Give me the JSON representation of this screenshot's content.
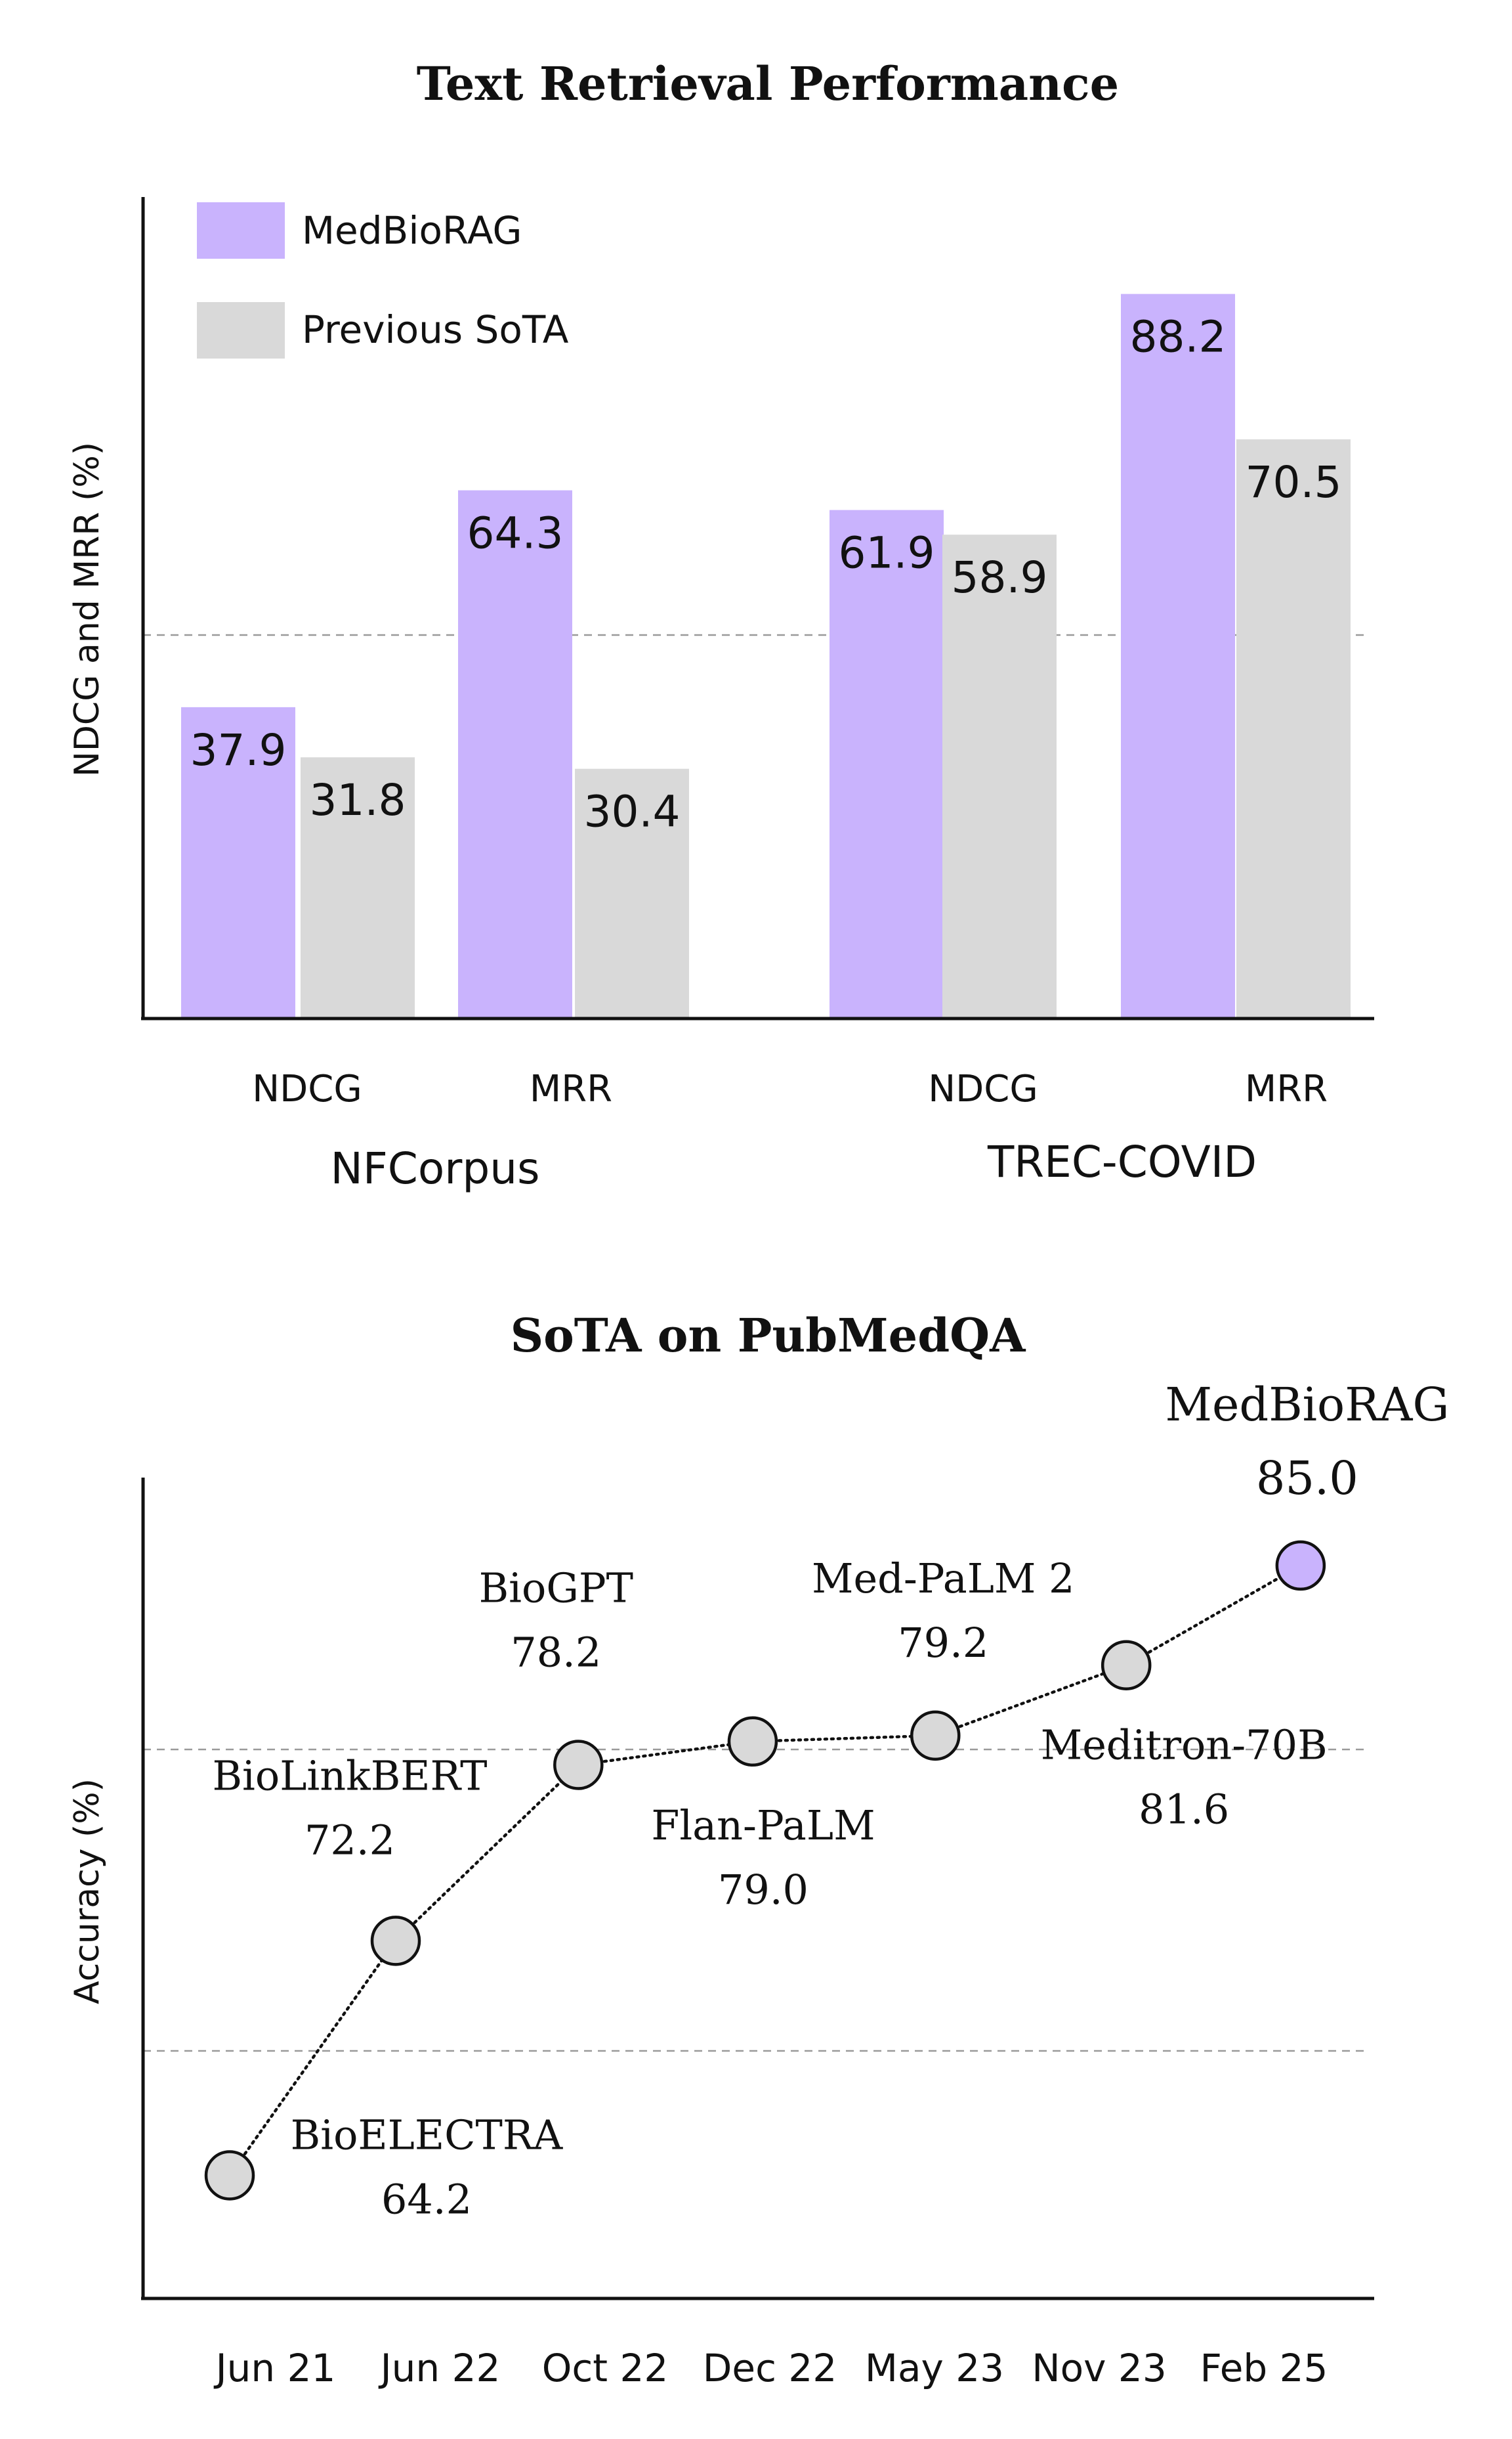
{
  "chart_data": [
    {
      "type": "bar",
      "title": "Text Retrieval Performance",
      "ylabel": "NDCG and MRR (%)",
      "ylim": [
        0,
        100
      ],
      "grid": "single dashed reference line",
      "legend_position": "top-left",
      "groups": [
        "NFCorpus",
        "TREC-COVID"
      ],
      "categories": [
        "NDCG",
        "MRR",
        "NDCG",
        "MRR"
      ],
      "series": [
        {
          "name": "MedBioRAG",
          "color": "#c9b3fd",
          "values": [
            37.9,
            64.3,
            61.9,
            88.2
          ],
          "labels": [
            "37.9",
            "64.3",
            "61.9",
            "88.2"
          ]
        },
        {
          "name": "Previous SoTA",
          "color": "#d9d9d9",
          "values": [
            31.8,
            30.4,
            58.9,
            70.5
          ],
          "labels": [
            "31.8",
            "30.4",
            "58.9",
            "70.5"
          ]
        }
      ]
    },
    {
      "type": "line",
      "title": "SoTA on PubMedQA",
      "ylabel": "Accuracy (%)",
      "ylim": [
        60,
        88
      ],
      "grid": "dashed reference lines",
      "x": [
        "Jun 21",
        "Jun 22",
        "Oct 22",
        "Dec 22",
        "May 23",
        "Nov 23",
        "Feb 25"
      ],
      "points": [
        {
          "model": "BioELECTRA",
          "x": 0.0,
          "y": 64.2,
          "label": "64.2"
        },
        {
          "model": "BioLinkBERT",
          "x": 1.0,
          "y": 72.2,
          "label": "72.2"
        },
        {
          "model": "BioGPT",
          "x": 2.1,
          "y": 78.2,
          "label": "78.2"
        },
        {
          "model": "Flan-PaLM",
          "x": 3.15,
          "y": 79.0,
          "label": "79.0"
        },
        {
          "model": "Med-PaLM 2",
          "x": 4.25,
          "y": 79.2,
          "label": "79.2"
        },
        {
          "model": "Meditron-70B",
          "x": 5.4,
          "y": 81.6,
          "label": "81.6"
        },
        {
          "model": "MedBioRAG",
          "x": 6.45,
          "y": 85.0,
          "label": "85.0"
        }
      ],
      "colors": {
        "baseline": "#d9d9d9",
        "highlight": "#c9b3fd"
      }
    }
  ]
}
